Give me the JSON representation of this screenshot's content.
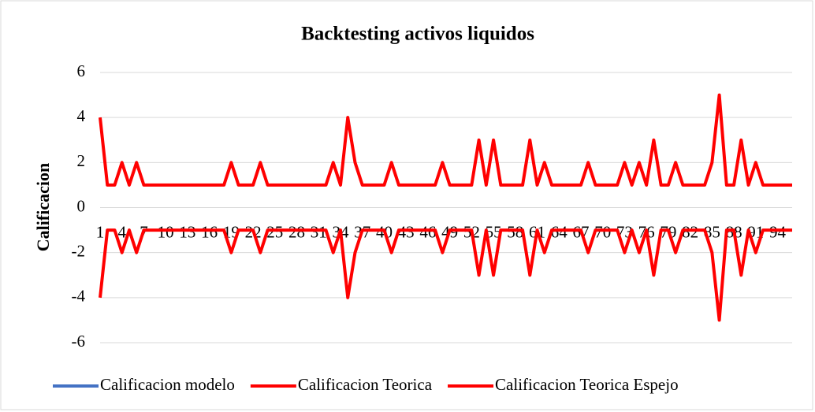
{
  "chart_data": {
    "type": "line",
    "title": "Backtesting activos liquidos",
    "y_label": "Calificacion",
    "categories": [
      "1",
      null,
      null,
      "4",
      null,
      null,
      "7",
      null,
      null,
      "10",
      null,
      null,
      "13",
      null,
      null,
      "16",
      null,
      null,
      "19",
      null,
      null,
      "22",
      null,
      null,
      "25",
      null,
      null,
      "28",
      null,
      null,
      "31",
      null,
      null,
      "34",
      null,
      null,
      "37",
      null,
      null,
      "40",
      null,
      null,
      "43",
      null,
      null,
      "46",
      null,
      null,
      "49",
      null,
      null,
      "52",
      null,
      null,
      "55",
      null,
      null,
      "58",
      null,
      null,
      "61",
      null,
      null,
      "64",
      null,
      null,
      "67",
      null,
      null,
      "70",
      null,
      null,
      "73",
      null,
      null,
      "76",
      null,
      null,
      "79",
      null,
      null,
      "82",
      null,
      null,
      "85",
      null,
      null,
      "88",
      null,
      null,
      "91",
      null,
      null,
      "94",
      null,
      null
    ],
    "series": [
      {
        "name": "Calificacion modelo",
        "color": "#4472c4",
        "values": [
          4,
          1,
          1,
          2,
          1,
          2,
          1,
          1,
          1,
          1,
          1,
          1,
          1,
          1,
          1,
          1,
          1,
          1,
          2,
          1,
          1,
          1,
          2,
          1,
          1,
          1,
          1,
          1,
          1,
          1,
          1,
          1,
          2,
          1,
          4,
          2,
          1,
          1,
          1,
          1,
          2,
          1,
          1,
          1,
          1,
          1,
          1,
          2,
          1,
          1,
          1,
          1,
          3,
          1,
          3,
          1,
          1,
          1,
          1,
          3,
          1,
          2,
          1,
          1,
          1,
          1,
          1,
          2,
          1,
          1,
          1,
          1,
          2,
          1,
          2,
          1,
          3,
          1,
          1,
          2,
          1,
          1,
          1,
          1,
          2,
          5,
          1,
          1,
          3,
          1,
          2,
          1,
          1,
          1,
          1,
          1
        ]
      },
      {
        "name": "Calificacion Teorica",
        "color": "#ff0000",
        "values": [
          4,
          1,
          1,
          2,
          1,
          2,
          1,
          1,
          1,
          1,
          1,
          1,
          1,
          1,
          1,
          1,
          1,
          1,
          2,
          1,
          1,
          1,
          2,
          1,
          1,
          1,
          1,
          1,
          1,
          1,
          1,
          1,
          2,
          1,
          4,
          2,
          1,
          1,
          1,
          1,
          2,
          1,
          1,
          1,
          1,
          1,
          1,
          2,
          1,
          1,
          1,
          1,
          3,
          1,
          3,
          1,
          1,
          1,
          1,
          3,
          1,
          2,
          1,
          1,
          1,
          1,
          1,
          2,
          1,
          1,
          1,
          1,
          2,
          1,
          2,
          1,
          3,
          1,
          1,
          2,
          1,
          1,
          1,
          1,
          2,
          5,
          1,
          1,
          3,
          1,
          2,
          1,
          1,
          1,
          1,
          1
        ]
      },
      {
        "name": "Calificacion Teorica Espejo",
        "color": "#ff0000",
        "values": [
          -4,
          -1,
          -1,
          -2,
          -1,
          -2,
          -1,
          -1,
          -1,
          -1,
          -1,
          -1,
          -1,
          -1,
          -1,
          -1,
          -1,
          -1,
          -2,
          -1,
          -1,
          -1,
          -2,
          -1,
          -1,
          -1,
          -1,
          -1,
          -1,
          -1,
          -1,
          -1,
          -2,
          -1,
          -4,
          -2,
          -1,
          -1,
          -1,
          -1,
          -2,
          -1,
          -1,
          -1,
          -1,
          -1,
          -1,
          -2,
          -1,
          -1,
          -1,
          -1,
          -3,
          -1,
          -3,
          -1,
          -1,
          -1,
          -1,
          -3,
          -1,
          -2,
          -1,
          -1,
          -1,
          -1,
          -1,
          -2,
          -1,
          -1,
          -1,
          -1,
          -2,
          -1,
          -2,
          -1,
          -3,
          -1,
          -1,
          -2,
          -1,
          -1,
          -1,
          -1,
          -2,
          -5,
          -1,
          -1,
          -3,
          -1,
          -2,
          -1,
          -1,
          -1,
          -1,
          -1
        ]
      }
    ],
    "ylim": [
      -6,
      6
    ],
    "yticks": [
      -6,
      -4,
      -2,
      0,
      2,
      4,
      6
    ],
    "grid": true,
    "legend": "bottom"
  }
}
